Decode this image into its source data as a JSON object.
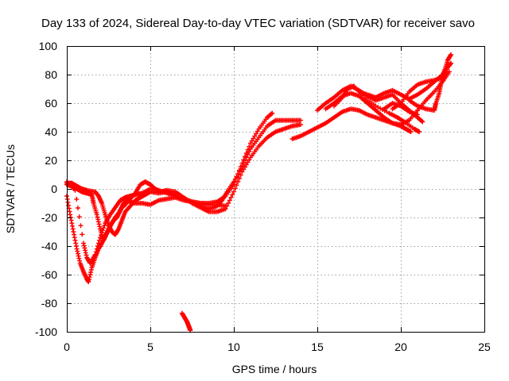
{
  "chart_data": {
    "type": "scatter",
    "title": "Day 133 of 2024, Sidereal Day-to-day VTEC variation (SDTVAR) for receiver savo",
    "xlabel": "GPS time / hours",
    "ylabel": "SDTVAR / TECUs",
    "xlim": [
      0,
      25
    ],
    "ylim": [
      -100,
      100
    ],
    "xticks": [
      0,
      5,
      10,
      15,
      20,
      25
    ],
    "yticks": [
      -100,
      -80,
      -60,
      -40,
      -20,
      0,
      20,
      40,
      60,
      80,
      100
    ],
    "grid": true,
    "marker": "plus",
    "color": "#ff0000",
    "series": [
      {
        "points": [
          [
            0.0,
            3
          ],
          [
            0.3,
            2
          ],
          [
            0.6,
            0
          ],
          [
            0.9,
            -2
          ],
          [
            1.2,
            -3
          ],
          [
            1.5,
            -4
          ],
          [
            1.6,
            -10
          ],
          [
            1.8,
            -18
          ],
          [
            2.0,
            -28
          ],
          [
            2.2,
            -36
          ],
          [
            2.4,
            -31
          ],
          [
            2.6,
            -26
          ],
          [
            2.8,
            -22
          ],
          [
            3.0,
            -20
          ],
          [
            3.2,
            -15
          ],
          [
            3.4,
            -10
          ],
          [
            3.6,
            -8
          ],
          [
            3.8,
            -9
          ],
          [
            4.0,
            -10
          ],
          [
            4.5,
            -10
          ],
          [
            5.0,
            -11
          ],
          [
            5.5,
            -8
          ],
          [
            6.0,
            -7
          ],
          [
            6.5,
            -6
          ],
          [
            7.0,
            -8
          ],
          [
            7.5,
            -9
          ],
          [
            8.0,
            -12
          ],
          [
            8.5,
            -14
          ],
          [
            9.0,
            -12
          ],
          [
            9.3,
            -8
          ],
          [
            9.6,
            -2
          ],
          [
            10.0,
            5
          ],
          [
            10.5,
            16
          ],
          [
            11.0,
            28
          ],
          [
            11.5,
            36
          ],
          [
            12.0,
            44
          ],
          [
            12.5,
            48
          ],
          [
            13.0,
            48
          ],
          [
            13.5,
            48
          ],
          [
            14.0,
            48
          ]
        ]
      },
      {
        "points": [
          [
            0.0,
            -5
          ],
          [
            0.2,
            -18
          ],
          [
            0.4,
            -30
          ],
          [
            0.6,
            -42
          ],
          [
            0.8,
            -52
          ],
          [
            1.0,
            -58
          ],
          [
            1.2,
            -63
          ],
          [
            1.3,
            -65
          ],
          [
            1.5,
            -55
          ],
          [
            1.7,
            -48
          ],
          [
            1.9,
            -42
          ],
          [
            2.1,
            -38
          ],
          [
            2.3,
            -33
          ],
          [
            2.5,
            -28
          ],
          [
            2.7,
            -24
          ],
          [
            2.9,
            -20
          ],
          [
            3.1,
            -17
          ],
          [
            3.3,
            -13
          ],
          [
            3.5,
            -11
          ],
          [
            3.8,
            -7
          ],
          [
            4.1,
            -3
          ],
          [
            4.4,
            3
          ],
          [
            4.7,
            5
          ],
          [
            5.0,
            3
          ],
          [
            5.3,
            0
          ],
          [
            5.6,
            -2
          ],
          [
            6.0,
            -1
          ],
          [
            6.5,
            -2
          ],
          [
            7.0,
            -6
          ],
          [
            7.5,
            -10
          ],
          [
            8.0,
            -13
          ],
          [
            8.5,
            -16
          ],
          [
            9.0,
            -16
          ],
          [
            9.5,
            -14
          ],
          [
            10.0,
            -2
          ],
          [
            10.5,
            12
          ],
          [
            11.0,
            22
          ],
          [
            11.5,
            30
          ],
          [
            12.0,
            36
          ],
          [
            12.5,
            40
          ],
          [
            13.0,
            42
          ],
          [
            13.5,
            44
          ],
          [
            14.0,
            45
          ]
        ]
      },
      {
        "points": [
          [
            0.0,
            5
          ],
          [
            0.5,
            -1
          ],
          [
            1.0,
            -38
          ],
          [
            1.2,
            -48
          ],
          [
            1.4,
            -52
          ],
          [
            1.7,
            -46
          ],
          [
            2.0,
            -34
          ],
          [
            2.3,
            -24
          ],
          [
            2.6,
            -18
          ],
          [
            2.9,
            -13
          ],
          [
            3.2,
            -8
          ],
          [
            3.5,
            -6
          ],
          [
            3.8,
            -5
          ],
          [
            4.1,
            -4
          ],
          [
            4.5,
            -3
          ],
          [
            5.0,
            0
          ],
          [
            5.5,
            -1
          ],
          [
            6.0,
            -3
          ],
          [
            6.5,
            -5
          ],
          [
            7.0,
            -7
          ],
          [
            7.5,
            -9
          ],
          [
            8.0,
            -10
          ],
          [
            8.5,
            -10
          ],
          [
            9.0,
            -9
          ],
          [
            9.5,
            -5
          ],
          [
            10.0,
            3
          ],
          [
            10.5,
            18
          ],
          [
            11.0,
            32
          ],
          [
            11.5,
            42
          ],
          [
            12.0,
            50
          ],
          [
            12.3,
            53
          ]
        ]
      },
      {
        "points": [
          [
            0.0,
            4
          ],
          [
            0.3,
            4
          ],
          [
            0.6,
            2
          ],
          [
            0.9,
            0
          ],
          [
            1.2,
            -1
          ],
          [
            1.7,
            -2
          ],
          [
            1.9,
            -5
          ],
          [
            2.1,
            -10
          ],
          [
            2.3,
            -18
          ],
          [
            2.5,
            -25
          ],
          [
            2.7,
            -30
          ],
          [
            2.9,
            -32
          ],
          [
            3.1,
            -28
          ],
          [
            3.3,
            -22
          ],
          [
            3.5,
            -16
          ],
          [
            3.8,
            -12
          ],
          [
            4.1,
            -8
          ],
          [
            4.4,
            -6
          ],
          [
            4.7,
            -4
          ],
          [
            5.0,
            -2
          ],
          [
            5.5,
            -3
          ],
          [
            6.0,
            -2
          ],
          [
            6.5,
            -4
          ],
          [
            7.0,
            -7
          ],
          [
            7.5,
            -9
          ],
          [
            8.0,
            -10
          ],
          [
            8.5,
            -11
          ],
          [
            9.0,
            -11
          ],
          [
            9.5,
            -12
          ]
        ]
      },
      {
        "points": [
          [
            6.9,
            -87
          ],
          [
            7.05,
            -90
          ],
          [
            7.2,
            -93
          ],
          [
            7.3,
            -96
          ],
          [
            7.4,
            -99
          ]
        ]
      },
      {
        "points": [
          [
            13.5,
            35
          ],
          [
            14.0,
            37
          ],
          [
            14.5,
            40
          ],
          [
            15.0,
            43
          ],
          [
            15.5,
            46
          ],
          [
            16.0,
            50
          ],
          [
            16.5,
            54
          ],
          [
            17.0,
            56
          ],
          [
            17.5,
            55
          ],
          [
            18.0,
            52
          ],
          [
            18.5,
            50
          ],
          [
            19.0,
            48
          ],
          [
            19.5,
            46
          ],
          [
            20.0,
            45
          ],
          [
            20.5,
            48
          ],
          [
            21.0,
            55
          ],
          [
            21.5,
            62
          ],
          [
            22.0,
            68
          ],
          [
            22.5,
            75
          ],
          [
            22.9,
            82
          ]
        ]
      },
      {
        "points": [
          [
            15.0,
            55
          ],
          [
            15.5,
            60
          ],
          [
            16.0,
            64
          ],
          [
            16.5,
            69
          ],
          [
            17.0,
            72
          ],
          [
            17.5,
            69
          ],
          [
            18.0,
            65
          ],
          [
            18.5,
            62
          ],
          [
            19.0,
            64
          ],
          [
            19.5,
            66
          ],
          [
            20.0,
            60
          ],
          [
            20.5,
            55
          ],
          [
            21.0,
            50
          ],
          [
            21.3,
            47
          ]
        ]
      },
      {
        "points": [
          [
            15.5,
            56
          ],
          [
            16.0,
            60
          ],
          [
            16.5,
            65
          ],
          [
            17.0,
            67
          ],
          [
            17.5,
            65
          ],
          [
            18.0,
            60
          ],
          [
            18.5,
            55
          ],
          [
            19.0,
            50
          ],
          [
            19.5,
            46
          ],
          [
            20.0,
            44
          ],
          [
            20.3,
            42
          ],
          [
            20.6,
            40
          ]
        ]
      },
      {
        "points": [
          [
            16.0,
            58
          ],
          [
            16.5,
            64
          ],
          [
            16.8,
            70
          ],
          [
            17.2,
            72
          ],
          [
            17.8,
            64
          ],
          [
            18.5,
            58
          ],
          [
            19.3,
            53
          ],
          [
            19.8,
            50
          ],
          [
            20.2,
            47
          ],
          [
            20.8,
            42
          ],
          [
            21.1,
            40
          ]
        ]
      },
      {
        "points": [
          [
            17.5,
            68
          ],
          [
            18.0,
            66
          ],
          [
            18.5,
            64
          ],
          [
            19.0,
            67
          ],
          [
            19.5,
            69
          ],
          [
            20.0,
            66
          ],
          [
            20.5,
            63
          ],
          [
            21.0,
            66
          ],
          [
            21.5,
            70
          ],
          [
            22.0,
            75
          ],
          [
            22.5,
            80
          ],
          [
            22.8,
            87
          ]
        ]
      },
      {
        "points": [
          [
            19.5,
            56
          ],
          [
            20.0,
            60
          ],
          [
            20.5,
            68
          ],
          [
            21.0,
            73
          ],
          [
            21.5,
            75
          ],
          [
            22.0,
            76
          ],
          [
            22.5,
            78
          ],
          [
            22.8,
            85
          ],
          [
            23.0,
            88
          ]
        ]
      },
      {
        "points": [
          [
            20.5,
            62
          ],
          [
            21.0,
            58
          ],
          [
            21.5,
            56
          ],
          [
            22.0,
            55
          ],
          [
            22.1,
            60
          ],
          [
            22.3,
            67
          ],
          [
            22.4,
            74
          ],
          [
            22.6,
            82
          ],
          [
            22.8,
            90
          ],
          [
            23.0,
            94
          ]
        ]
      },
      {
        "points": [
          [
            19.0,
            56
          ],
          [
            19.5,
            60
          ],
          [
            20.0,
            58
          ],
          [
            20.5,
            54
          ],
          [
            21.0,
            52
          ]
        ]
      }
    ]
  }
}
